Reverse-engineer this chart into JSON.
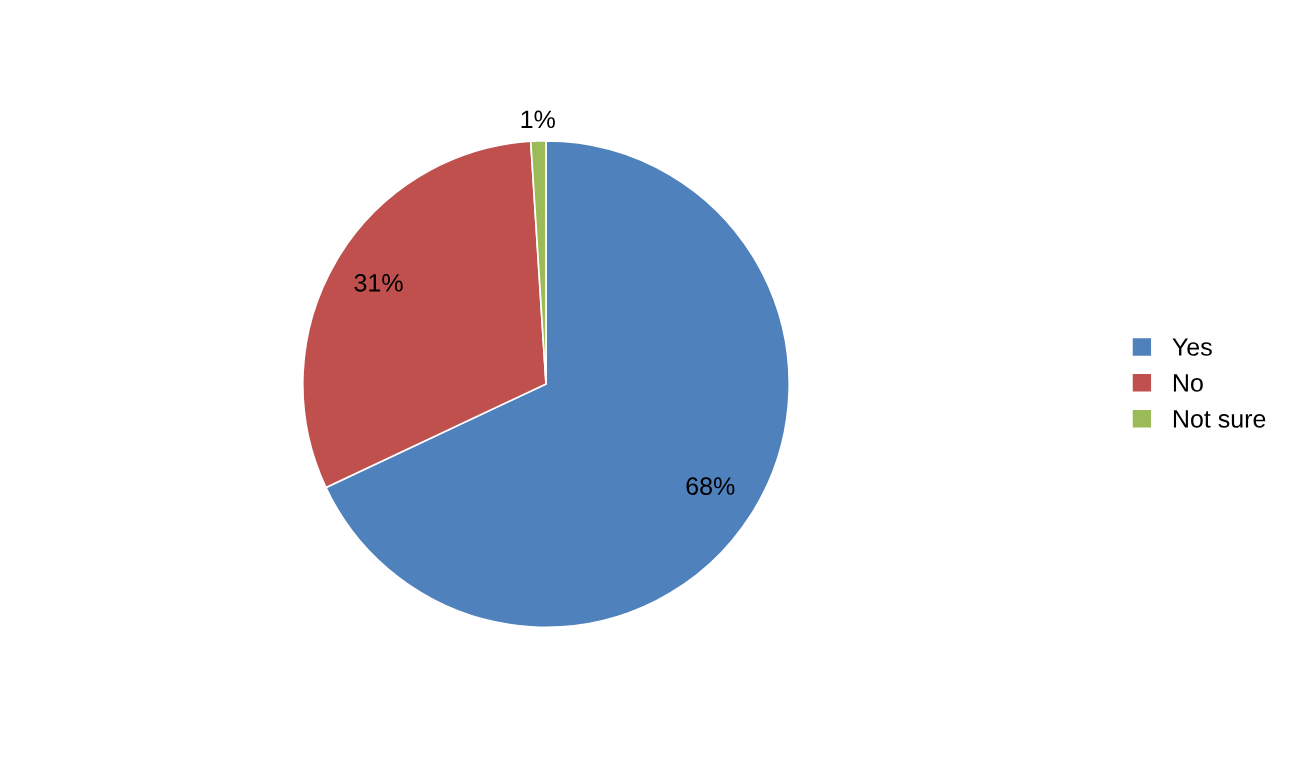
{
  "chart_data": {
    "type": "pie",
    "categories": [
      "Yes",
      "No",
      "Not sure"
    ],
    "values": [
      68,
      31,
      1
    ],
    "colors": [
      "#4f81bd",
      "#c0504d",
      "#9bbb59"
    ],
    "value_labels": [
      "68%",
      "31%",
      "1%"
    ],
    "legend": "right"
  }
}
